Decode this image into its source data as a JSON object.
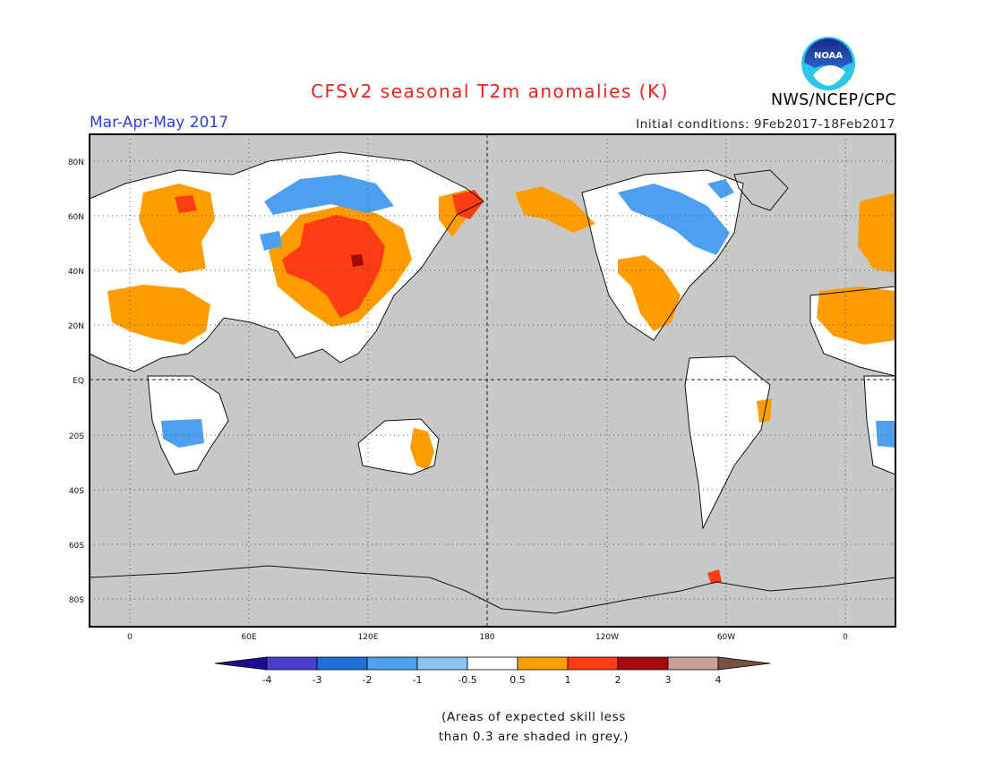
{
  "header": {
    "title": "CFSv2 seasonal T2m anomalies (K)",
    "season": "Mar-Apr-May 2017",
    "initial_conditions": "Initial conditions: 9Feb2017-18Feb2017",
    "agency": "NWS/NCEP/CPC",
    "logo_text": "NOAA"
  },
  "map": {
    "lat_labels": [
      "80N",
      "60N",
      "40N",
      "20N",
      "EQ",
      "20S",
      "40S",
      "60S",
      "80S"
    ],
    "lon_labels": [
      "0",
      "60E",
      "120E",
      "180",
      "120W",
      "60W",
      "0"
    ],
    "background_color": "#c8c8c8",
    "grid": "dotted",
    "reference_lines": [
      "Equator",
      "180"
    ]
  },
  "colorbar": {
    "ticks": [
      "-4",
      "-3",
      "-2",
      "-1",
      "-0.5",
      "0.5",
      "1",
      "2",
      "3",
      "4"
    ],
    "colors": [
      "#1e0c96",
      "#4b3ecf",
      "#1f6fd8",
      "#4d9ff0",
      "#8cc6f5",
      "#ffffff",
      "#ff9c00",
      "#ff3c14",
      "#a50a0a",
      "#c8a095",
      "#7a5040"
    ]
  },
  "note": {
    "line1": "(Areas of expected skill less",
    "line2": "than 0.3 are shaded in grey.)"
  }
}
